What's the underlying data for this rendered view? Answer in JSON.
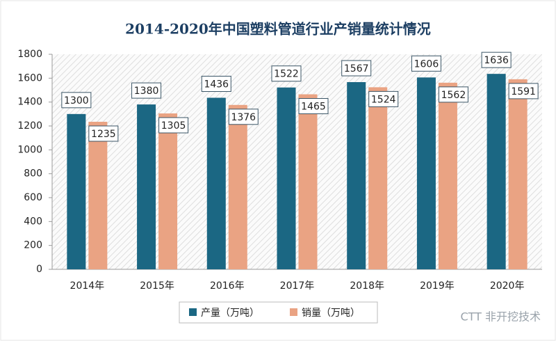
{
  "chart_data": {
    "type": "bar",
    "title": "2014-2020年中国塑料管道行业产销量统计情况",
    "categories": [
      "2014年",
      "2015年",
      "2016年",
      "2017年",
      "2018年",
      "2019年",
      "2020年"
    ],
    "series": [
      {
        "name": "产量（万吨）",
        "color": "#1b6783",
        "values": [
          1300,
          1380,
          1436,
          1522,
          1567,
          1606,
          1636
        ]
      },
      {
        "name": "销量（万吨）",
        "color": "#eaa383",
        "values": [
          1235,
          1305,
          1376,
          1465,
          1524,
          1562,
          1591
        ]
      }
    ],
    "ylim": [
      0,
      1800
    ],
    "yticks": [
      0,
      200,
      400,
      600,
      800,
      1000,
      1200,
      1400,
      1600,
      1800
    ],
    "watermark": "CTT 非开挖技术"
  }
}
